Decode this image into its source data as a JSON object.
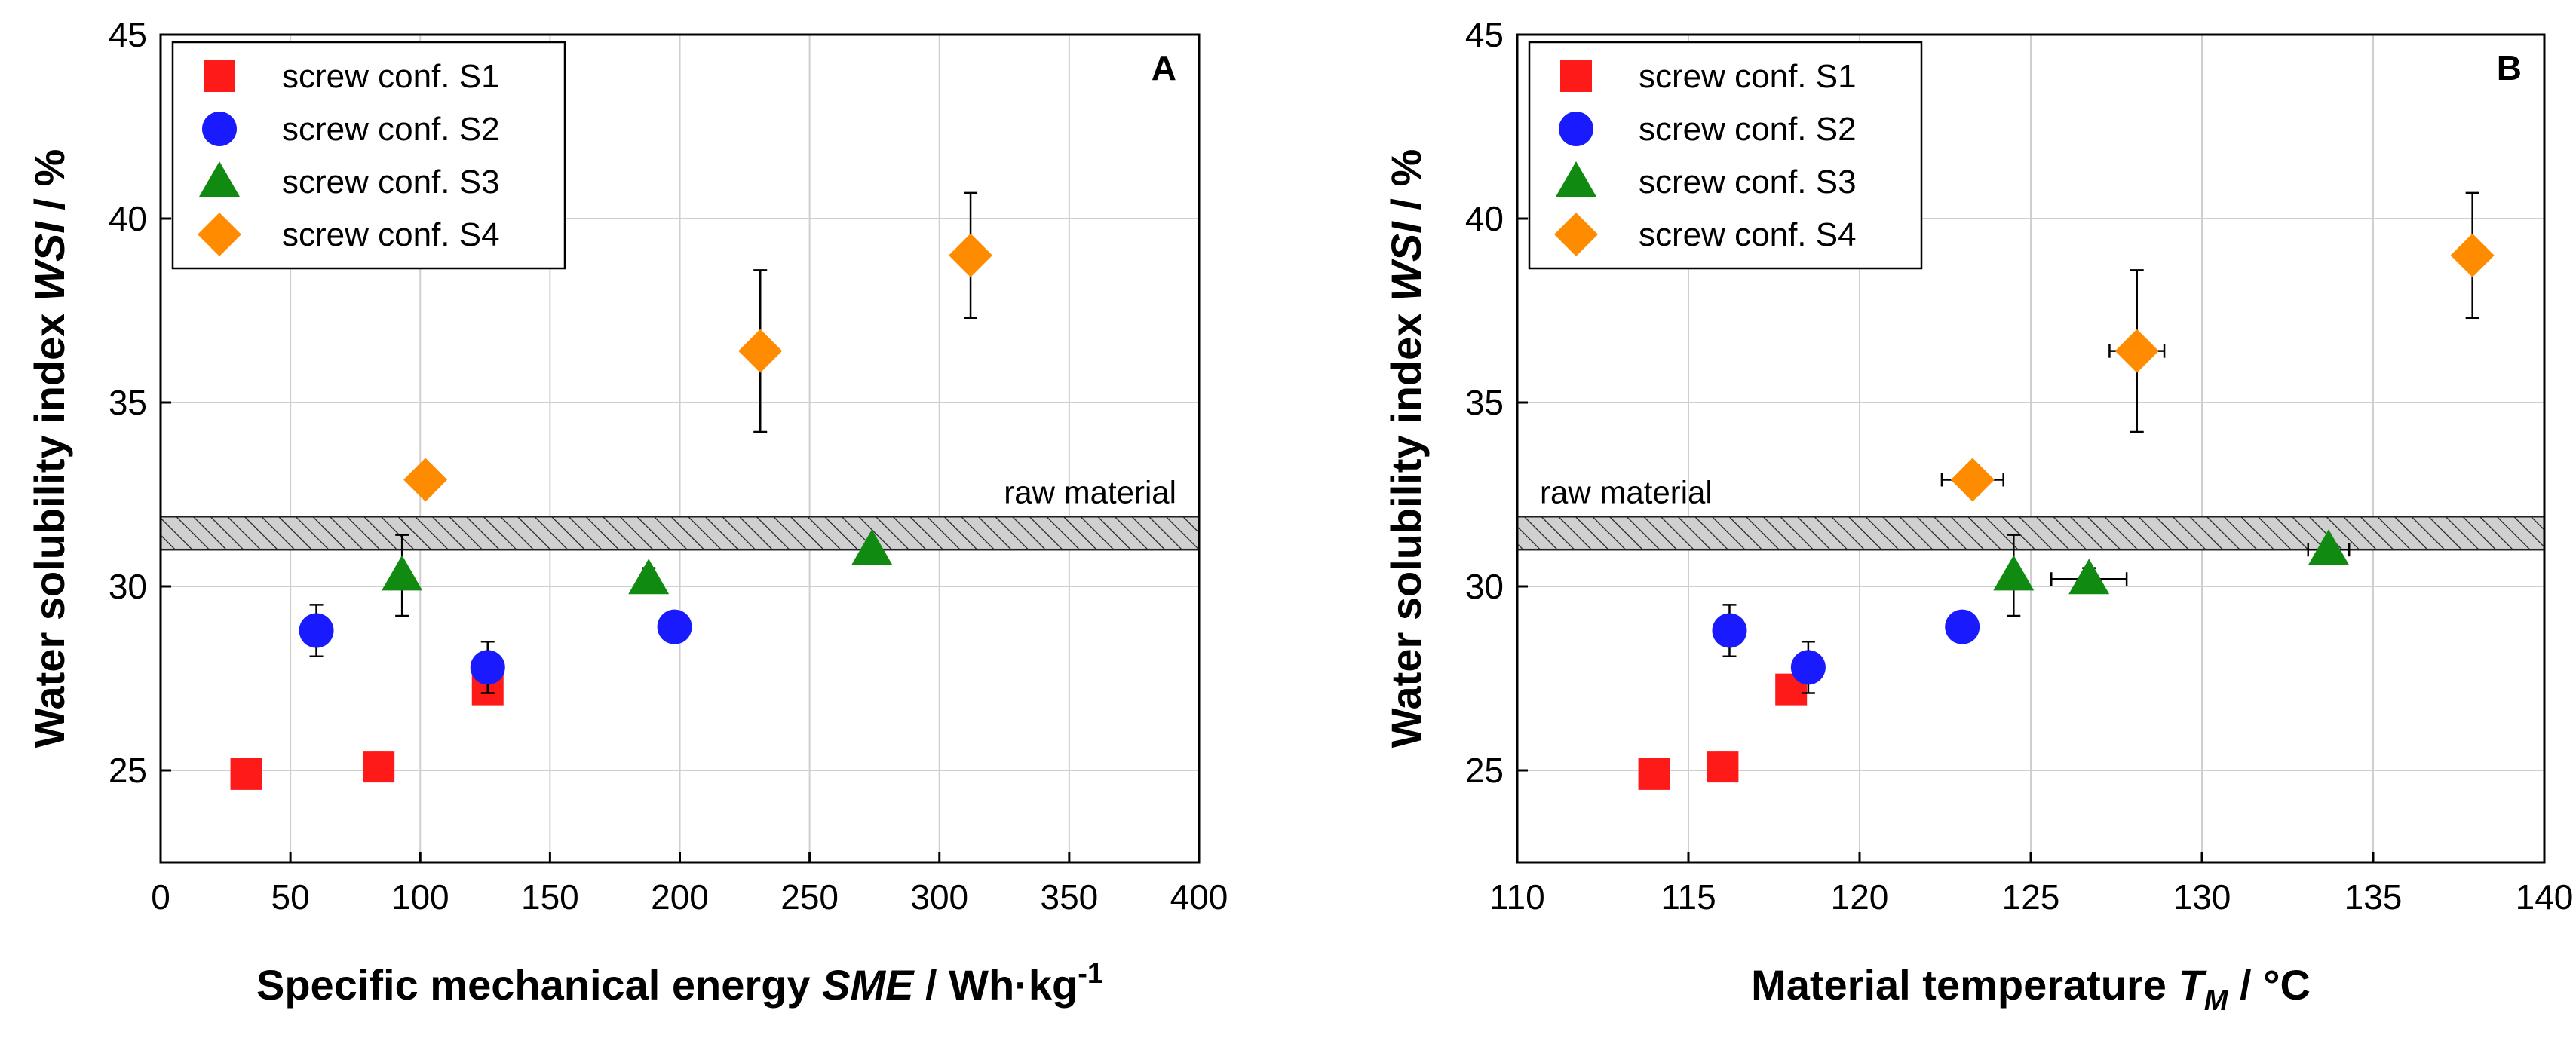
{
  "chart_data": [
    {
      "type": "scatter",
      "panel_label": "A",
      "xlabel": {
        "pre": "Specific mechanical energy ",
        "var": "SME",
        "post": " / Wh·kg",
        "sup": "-1"
      },
      "ylabel": {
        "pre": "Water solubility index ",
        "var": "WSI",
        "post": " / %"
      },
      "xlim": [
        0,
        400
      ],
      "ylim": [
        22.5,
        45
      ],
      "xticks": [
        0,
        50,
        100,
        150,
        200,
        250,
        300,
        350,
        400
      ],
      "yticks": [
        25,
        30,
        35,
        40,
        45
      ],
      "grid": true,
      "legend_position": "top-left",
      "reference_band": {
        "label": "raw material",
        "ymin": 31.0,
        "ymax": 31.9
      },
      "series": [
        {
          "name": "screw conf. S1",
          "marker": "square",
          "color": "#ff1a1a",
          "points": [
            {
              "x": 33,
              "y": 24.9,
              "yerr": 0.3
            },
            {
              "x": 84,
              "y": 25.1,
              "yerr": 0.4
            },
            {
              "x": 126,
              "y": 27.2,
              "yerr": 0.3
            }
          ]
        },
        {
          "name": "screw conf. S2",
          "marker": "circle",
          "color": "#1a1aff",
          "points": [
            {
              "x": 60,
              "y": 28.8,
              "yerr": 0.7
            },
            {
              "x": 126,
              "y": 27.8,
              "yerr": 0.7
            },
            {
              "x": 198,
              "y": 28.9,
              "yerr": 0.2
            }
          ]
        },
        {
          "name": "screw conf. S3",
          "marker": "triangle",
          "color": "#118a11",
          "points": [
            {
              "x": 93,
              "y": 30.3,
              "yerr": 1.1
            },
            {
              "x": 188,
              "y": 30.2,
              "yerr": 0.3
            },
            {
              "x": 274,
              "y": 31.0,
              "yerr": 0.2
            }
          ]
        },
        {
          "name": "screw conf. S4",
          "marker": "diamond",
          "color": "#ff8c00",
          "points": [
            {
              "x": 102,
              "y": 32.9,
              "yerr": 0.4
            },
            {
              "x": 231,
              "y": 36.4,
              "yerr": 2.2
            },
            {
              "x": 312,
              "y": 39.0,
              "yerr": 1.7
            }
          ]
        }
      ]
    },
    {
      "type": "scatter",
      "panel_label": "B",
      "xlabel": {
        "pre": "Material temperature ",
        "var": "T",
        "sub": "M",
        "post": " / °C"
      },
      "ylabel": {
        "pre": "Water solubility index ",
        "var": "WSI",
        "post": " / %"
      },
      "xlim": [
        110,
        140
      ],
      "ylim": [
        22.5,
        45
      ],
      "xticks": [
        110,
        115,
        120,
        125,
        130,
        135,
        140
      ],
      "yticks": [
        25,
        30,
        35,
        40,
        45
      ],
      "grid": true,
      "legend_position": "top-left",
      "reference_band": {
        "label": "raw material",
        "ymin": 31.0,
        "ymax": 31.9
      },
      "series": [
        {
          "name": "screw conf. S1",
          "marker": "square",
          "color": "#ff1a1a",
          "points": [
            {
              "x": 114.0,
              "y": 24.9,
              "yerr": 0.3
            },
            {
              "x": 116.0,
              "y": 25.1,
              "yerr": 0.4
            },
            {
              "x": 118.0,
              "y": 27.2,
              "yerr": 0.3
            }
          ]
        },
        {
          "name": "screw conf. S2",
          "marker": "circle",
          "color": "#1a1aff",
          "points": [
            {
              "x": 116.2,
              "y": 28.8,
              "yerr": 0.7
            },
            {
              "x": 118.5,
              "y": 27.8,
              "yerr": 0.7
            },
            {
              "x": 123.0,
              "y": 28.9,
              "yerr": 0.2
            }
          ]
        },
        {
          "name": "screw conf. S3",
          "marker": "triangle",
          "color": "#118a11",
          "points": [
            {
              "x": 124.5,
              "y": 30.3,
              "yerr": 1.1
            },
            {
              "x": 126.7,
              "y": 30.2,
              "yerr": 0.3,
              "xerr": 1.1
            },
            {
              "x": 133.7,
              "y": 31.0,
              "yerr": 0.2,
              "xerr": 0.6
            }
          ]
        },
        {
          "name": "screw conf. S4",
          "marker": "diamond",
          "color": "#ff8c00",
          "points": [
            {
              "x": 123.3,
              "y": 32.9,
              "yerr": 0.4,
              "xerr": 0.9
            },
            {
              "x": 128.1,
              "y": 36.4,
              "yerr": 2.2,
              "xerr": 0.8
            },
            {
              "x": 137.9,
              "y": 39.0,
              "yerr": 1.7
            }
          ]
        }
      ]
    }
  ]
}
